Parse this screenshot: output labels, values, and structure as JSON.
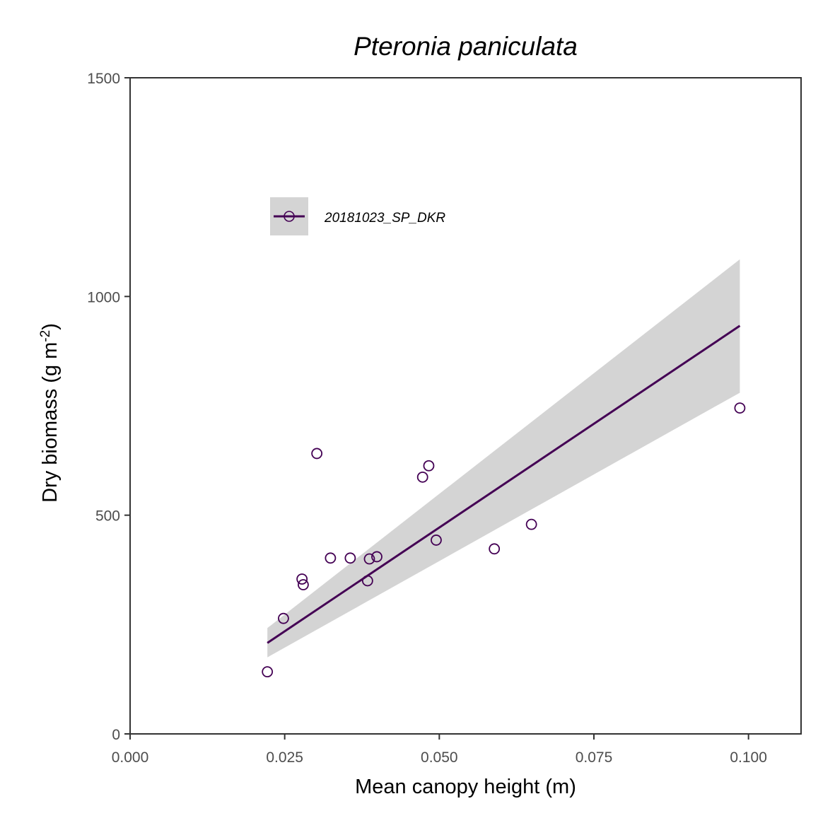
{
  "chart_data": {
    "type": "scatter",
    "title": "Pteronia paniculata",
    "xlabel": "Mean canopy height (m)",
    "ylabel": {
      "main": "Dry biomass (g m",
      "superscript": "-2",
      "close": ")"
    },
    "xlim": [
      0,
      0.1085
    ],
    "ylim": [
      0,
      1500
    ],
    "x_ticks": [
      0,
      0.025,
      0.05,
      0.075,
      0.1
    ],
    "x_tick_labels": [
      "0.000",
      "0.025",
      "0.050",
      "0.075",
      "0.100"
    ],
    "y_ticks": [
      0,
      500,
      1000,
      1500
    ],
    "y_tick_labels": [
      "0",
      "500",
      "1000",
      "1500"
    ],
    "grid": false,
    "legend": {
      "placement": "top-left inside",
      "entries": [
        "20181023_SP_DKR"
      ]
    },
    "series": [
      {
        "name": "20181023_SP_DKR",
        "color": "#440154",
        "points": [
          {
            "x": 0.0222,
            "y": 142
          },
          {
            "x": 0.0248,
            "y": 264
          },
          {
            "x": 0.0278,
            "y": 354
          },
          {
            "x": 0.028,
            "y": 341
          },
          {
            "x": 0.0302,
            "y": 641
          },
          {
            "x": 0.0324,
            "y": 402
          },
          {
            "x": 0.0356,
            "y": 402
          },
          {
            "x": 0.0384,
            "y": 350
          },
          {
            "x": 0.0387,
            "y": 400
          },
          {
            "x": 0.0399,
            "y": 405
          },
          {
            "x": 0.0473,
            "y": 587
          },
          {
            "x": 0.0483,
            "y": 613
          },
          {
            "x": 0.0495,
            "y": 443
          },
          {
            "x": 0.0589,
            "y": 423
          },
          {
            "x": 0.0649,
            "y": 479
          },
          {
            "x": 0.0986,
            "y": 745
          }
        ],
        "fit": {
          "type": "linear",
          "x_range": [
            0.0222,
            0.0986
          ],
          "y_at_ends": [
            208,
            933
          ],
          "ci_lower_at_ends": [
            175,
            780
          ],
          "ci_upper_at_ends": [
            242,
            1085
          ],
          "ci_fill": "#d4d4d4"
        }
      }
    ]
  }
}
